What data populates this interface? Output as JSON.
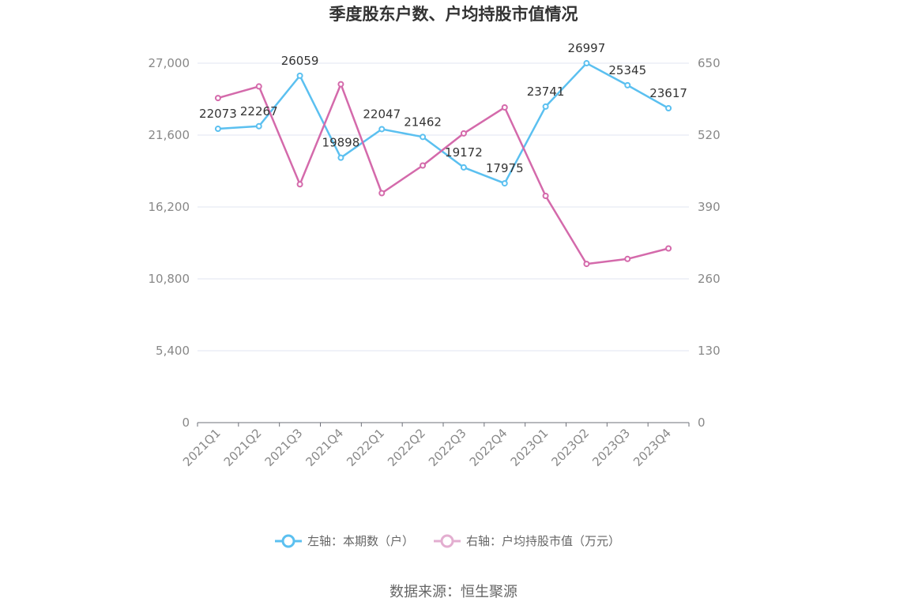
{
  "chart_data": {
    "type": "line",
    "title": "季度股东户数、户均持股市值情况",
    "categories": [
      "2021Q1",
      "2021Q2",
      "2021Q3",
      "2021Q4",
      "2022Q1",
      "2022Q2",
      "2022Q3",
      "2022Q4",
      "2023Q1",
      "2023Q2",
      "2023Q3",
      "2023Q4"
    ],
    "series": [
      {
        "name": "左轴：本期数（户）",
        "axis": "left",
        "color": "#5bc0f0",
        "values": [
          22073,
          22267,
          26059,
          19898,
          22047,
          21462,
          19172,
          17975,
          23741,
          26997,
          25345,
          23617
        ],
        "labels": [
          "22073",
          "22267",
          "26059",
          "19898",
          "22047",
          "21462",
          "19172",
          "17975",
          "23741",
          "26997",
          "25345",
          "23617"
        ]
      },
      {
        "name": "右轴：户均持股市值（万元）",
        "axis": "right",
        "color": "#d46aab",
        "values": [
          587,
          608,
          431,
          612,
          415,
          465,
          523,
          570,
          410,
          287,
          296,
          315
        ]
      }
    ],
    "y_left": {
      "min": 0,
      "max": 27000,
      "ticks": [
        0,
        5400,
        10800,
        16200,
        21600,
        27000
      ],
      "tick_labels": [
        "0",
        "5,400",
        "10,800",
        "16,200",
        "21,600",
        "27,000"
      ]
    },
    "y_right": {
      "min": 0,
      "max": 650,
      "ticks": [
        0,
        130,
        260,
        390,
        520,
        650
      ],
      "tick_labels": [
        "0",
        "130",
        "260",
        "390",
        "520",
        "650"
      ]
    },
    "grid": true,
    "legend_position": "bottom",
    "source": "数据来源：恒生聚源"
  }
}
